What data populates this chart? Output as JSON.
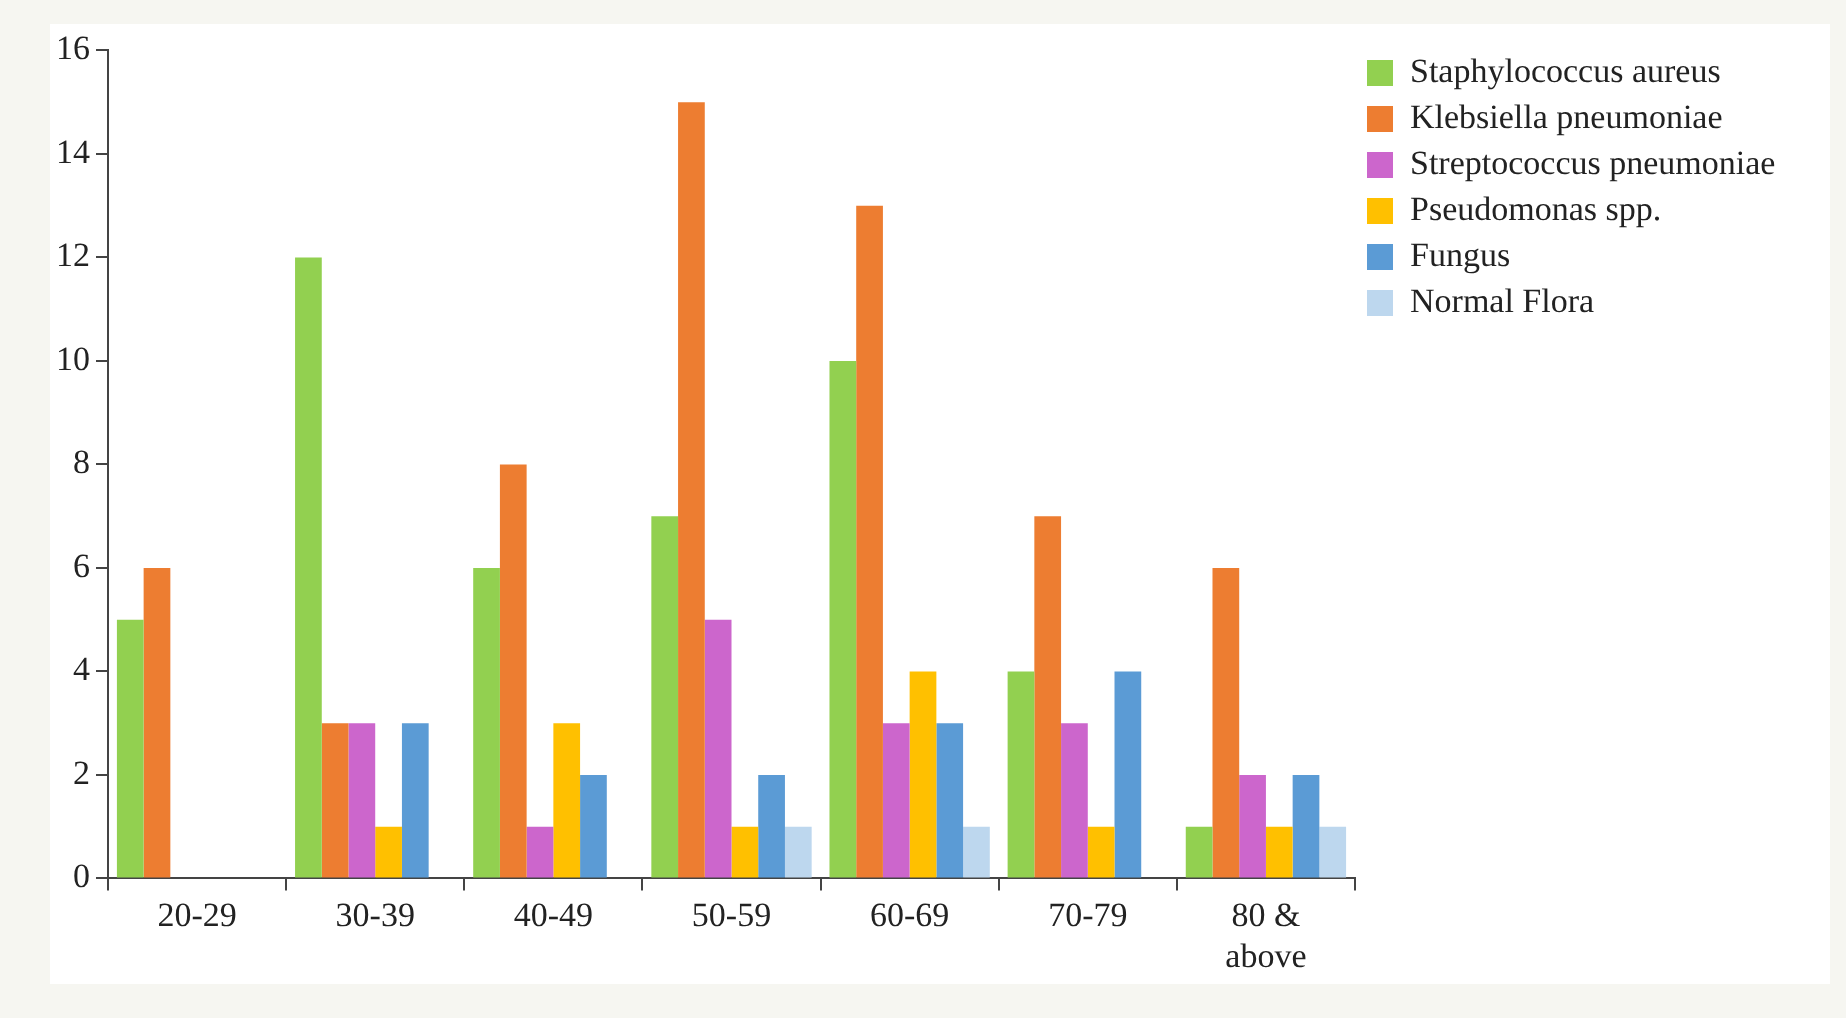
{
  "chart_data": {
    "type": "bar",
    "categories": [
      "20-29",
      "30-39",
      "40-49",
      "50-59",
      "60-69",
      "70-79",
      "80 & above"
    ],
    "series": [
      {
        "name": "Staphylococcus aureus",
        "color": "#92d050",
        "values": [
          5,
          12,
          6,
          7,
          10,
          4,
          1
        ]
      },
      {
        "name": "Klebsiella pneumoniae",
        "color": "#ed7d31",
        "values": [
          6,
          3,
          8,
          15,
          13,
          7,
          6
        ]
      },
      {
        "name": "Streptococcus pneumoniae",
        "color": "#cc66cc",
        "values": [
          0,
          3,
          1,
          5,
          3,
          3,
          2
        ]
      },
      {
        "name": "Pseudomonas spp.",
        "color": "#ffc000",
        "values": [
          0,
          1,
          3,
          1,
          4,
          1,
          1
        ]
      },
      {
        "name": "Fungus",
        "color": "#5b9bd5",
        "values": [
          0,
          3,
          2,
          2,
          3,
          4,
          2
        ]
      },
      {
        "name": "Normal Flora",
        "color": "#bdd7ee",
        "values": [
          0,
          0,
          0,
          1,
          1,
          0,
          1
        ]
      }
    ],
    "ylim": [
      0,
      16
    ],
    "yticks": [
      0,
      2,
      4,
      6,
      8,
      10,
      12,
      14,
      16
    ],
    "grid": false,
    "legend": "top right"
  }
}
